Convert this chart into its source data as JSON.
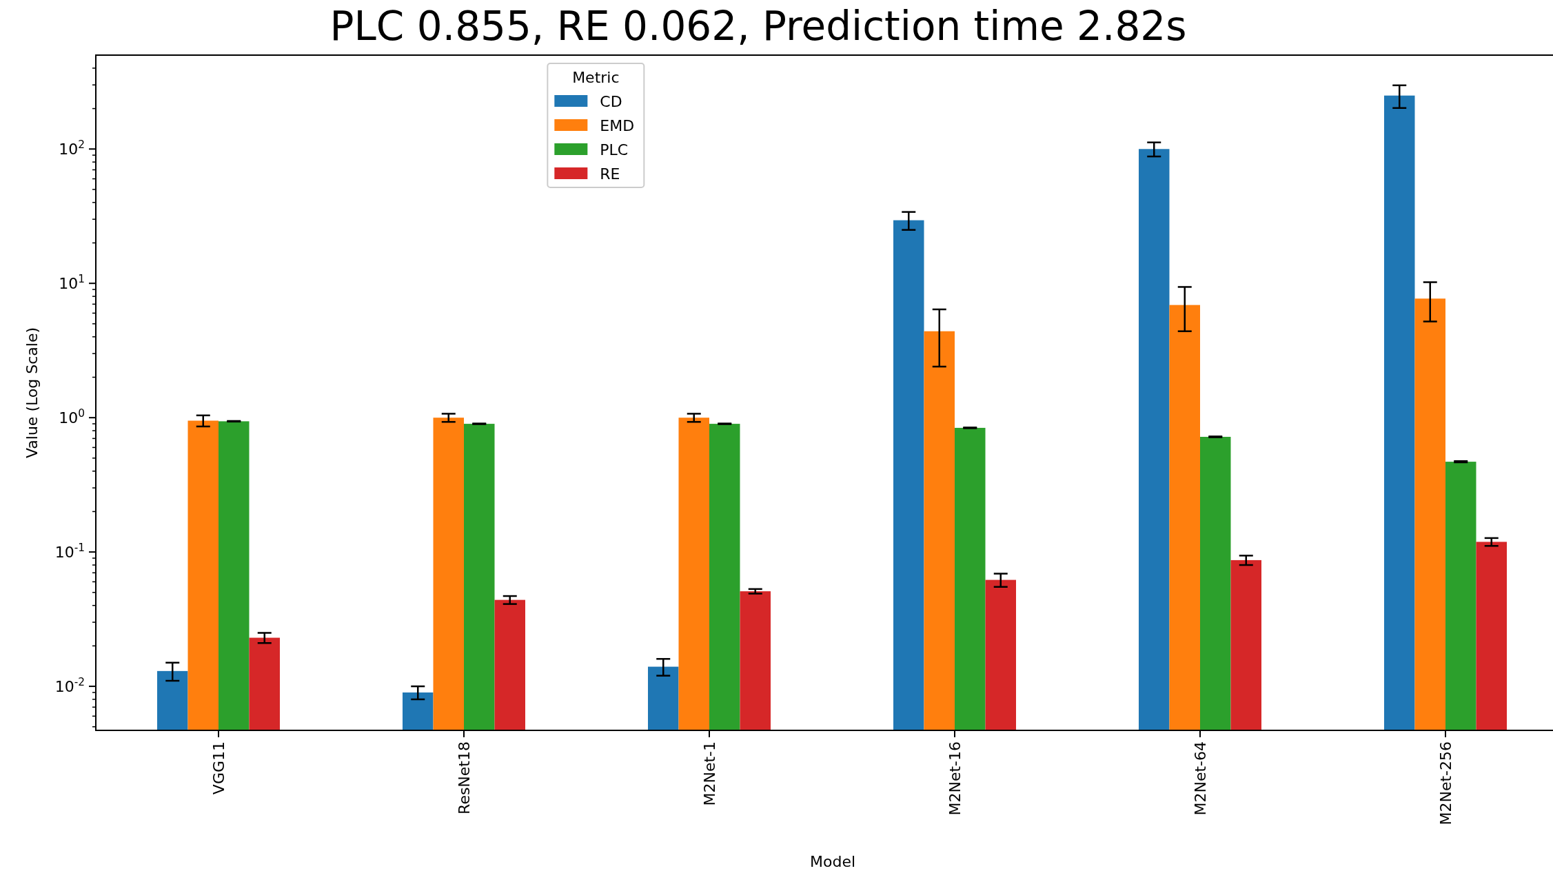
{
  "chart_data": {
    "type": "bar",
    "title": "PLC 0.855, RE 0.062, Prediction time 2.82s",
    "xlabel": "Model",
    "ylabel": "Value (Log Scale)",
    "legend_title": "Metric",
    "legend": "top left",
    "log": true,
    "grid": false,
    "categories": [
      "VGG11",
      "ResNet18",
      "M2Net-1",
      "M2Net-16",
      "M2Net-64",
      "M2Net-256"
    ],
    "ylim": [
      0.0047,
      500
    ],
    "yticks": [
      {
        "value": 0.01,
        "label": "10$^{-2}$"
      },
      {
        "value": 0.1,
        "label": "10$^{-1}$"
      },
      {
        "value": 1,
        "label": "10$^{0}$"
      },
      {
        "value": 10,
        "label": "10$^{1}$"
      },
      {
        "value": 100,
        "label": "10$^{2}$"
      },
      {
        "value": 0.005,
        "label": null
      },
      {
        "value": 0.006,
        "label": null
      },
      {
        "value": 0.007,
        "label": null
      },
      {
        "value": 0.008,
        "label": null
      },
      {
        "value": 0.009,
        "label": null
      },
      {
        "value": 0.02,
        "label": null
      },
      {
        "value": 0.03,
        "label": null
      },
      {
        "value": 0.04,
        "label": null
      },
      {
        "value": 0.05,
        "label": null
      },
      {
        "value": 0.06,
        "label": null
      },
      {
        "value": 0.07,
        "label": null
      },
      {
        "value": 0.08,
        "label": null
      },
      {
        "value": 0.09,
        "label": null
      },
      {
        "value": 0.2,
        "label": null
      },
      {
        "value": 0.3,
        "label": null
      },
      {
        "value": 0.4,
        "label": null
      },
      {
        "value": 0.5,
        "label": null
      },
      {
        "value": 0.6,
        "label": null
      },
      {
        "value": 0.7,
        "label": null
      },
      {
        "value": 0.8,
        "label": null
      },
      {
        "value": 0.9,
        "label": null
      },
      {
        "value": 2,
        "label": null
      },
      {
        "value": 3,
        "label": null
      },
      {
        "value": 4,
        "label": null
      },
      {
        "value": 5,
        "label": null
      },
      {
        "value": 6,
        "label": null
      },
      {
        "value": 7,
        "label": null
      },
      {
        "value": 8,
        "label": null
      },
      {
        "value": 9,
        "label": null
      },
      {
        "value": 20,
        "label": null
      },
      {
        "value": 30,
        "label": null
      },
      {
        "value": 40,
        "label": null
      },
      {
        "value": 50,
        "label": null
      },
      {
        "value": 60,
        "label": null
      },
      {
        "value": 70,
        "label": null
      },
      {
        "value": 80,
        "label": null
      },
      {
        "value": 90,
        "label": null
      },
      {
        "value": 200,
        "label": null
      },
      {
        "value": 300,
        "label": null
      },
      {
        "value": 400,
        "label": null
      }
    ],
    "series": [
      {
        "name": "CD",
        "color": "#1f77b4",
        "values": [
          0.013,
          0.009,
          0.014,
          29.5,
          100,
          250
        ],
        "errors": [
          0.002,
          0.001,
          0.002,
          4.5,
          12,
          48
        ]
      },
      {
        "name": "EMD",
        "color": "#ff7f0e",
        "values": [
          0.95,
          1.0,
          1.0,
          4.4,
          6.9,
          7.7
        ],
        "errors": [
          0.09,
          0.07,
          0.07,
          2,
          2.5,
          2.5
        ]
      },
      {
        "name": "PLC",
        "color": "#2ca02c",
        "values": [
          0.94,
          0.9,
          0.9,
          0.84,
          0.72,
          0.47
        ],
        "errors": [
          0.005,
          0.005,
          0.005,
          0.005,
          0.005,
          0.005
        ]
      },
      {
        "name": "RE",
        "color": "#d62728",
        "values": [
          0.023,
          0.044,
          0.051,
          0.062,
          0.087,
          0.119
        ],
        "errors": [
          0.002,
          0.003,
          0.002,
          0.007,
          0.007,
          0.008
        ]
      }
    ]
  }
}
